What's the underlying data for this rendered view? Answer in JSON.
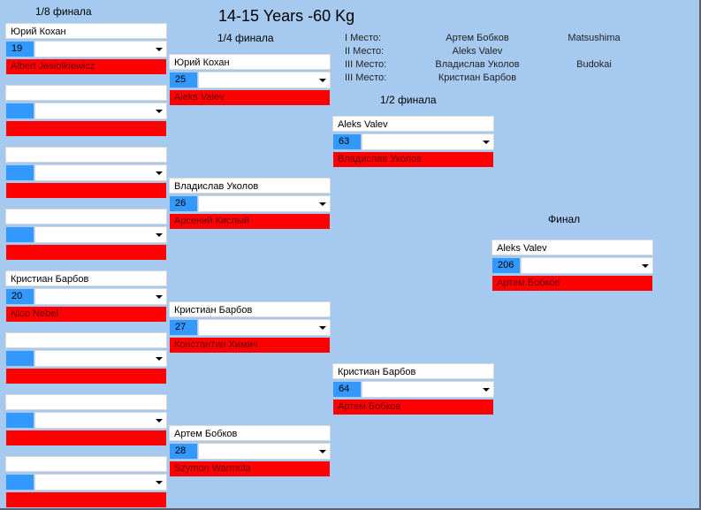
{
  "title": "14-15 Years -60 Kg",
  "rounds": {
    "r16": "1/8 финала",
    "qf": "1/4 финала",
    "sf": "1/2 финала",
    "final": "Финал"
  },
  "places": [
    {
      "label": "I Место:",
      "name": "Артем Бобков",
      "club": "Matsushima"
    },
    {
      "label": "II Место:",
      "name": "Aleks Valev",
      "club": ""
    },
    {
      "label": "III Место:",
      "name": "Владислав Уколов",
      "club": "Budokai"
    },
    {
      "label": "III Место:",
      "name": "Кристиан Барбов",
      "club": ""
    }
  ],
  "colors": {
    "background": "#a6c9ef",
    "number": "#3399ff",
    "opponent": "#ff0000"
  },
  "r16": [
    {
      "winner": "Юрий Кохан",
      "num": "19",
      "opponent": "Albert Jesiolkiewicz"
    },
    {
      "winner": "",
      "num": "",
      "opponent": ""
    },
    {
      "winner": "",
      "num": "",
      "opponent": ""
    },
    {
      "winner": "",
      "num": "",
      "opponent": ""
    },
    {
      "winner": "Кристиан Барбов",
      "num": "20",
      "opponent": "Nico Nebel"
    },
    {
      "winner": "",
      "num": "",
      "opponent": ""
    },
    {
      "winner": "",
      "num": "",
      "opponent": ""
    },
    {
      "winner": "",
      "num": "",
      "opponent": ""
    }
  ],
  "qf": [
    {
      "winner": "Юрий Кохан",
      "num": "25",
      "opponent": "Aleks Valev"
    },
    {
      "winner": "Владислав Уколов",
      "num": "26",
      "opponent": "Арсений Кислый"
    },
    {
      "winner": "Кристиан Барбов",
      "num": "27",
      "opponent": "Константин Химич"
    },
    {
      "winner": "Артем Бобков",
      "num": "28",
      "opponent": "Szymon Warmula"
    }
  ],
  "sf": [
    {
      "winner": "Aleks Valev",
      "num": "63",
      "opponent": "Владислав Уколов"
    },
    {
      "winner": "Кристиан Барбов",
      "num": "64",
      "opponent": "Артем Бобков"
    }
  ],
  "final": [
    {
      "winner": "Aleks Valev",
      "num": "206",
      "opponent": "Артем Бобков"
    }
  ]
}
